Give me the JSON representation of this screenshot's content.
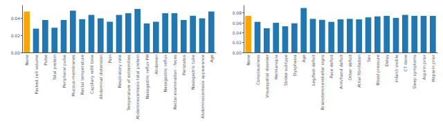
{
  "chart_data": [
    {
      "type": "bar",
      "categories": [
        "None",
        "Packed cell volume",
        "Pulse",
        "Total protein",
        "Peripheral pulse",
        "Mucous membranes",
        "Rectal temperature",
        "Capillary refill time",
        "Abdominal distension",
        "Pain",
        "Respiratory rate",
        "Temperature of extremities",
        "Abdominocentesis total protein",
        "Nasogastric reflux PH",
        "Abdomen",
        "Nasogastric reflux",
        "Rectal examination - feces",
        "Peristalsis",
        "Nasogastric tube",
        "Abdominocentesis appearance",
        "Age"
      ],
      "values": [
        0.048,
        0.028,
        0.038,
        0.029,
        0.038,
        0.049,
        0.039,
        0.044,
        0.04,
        0.036,
        0.044,
        0.046,
        0.051,
        0.034,
        0.036,
        0.046,
        0.046,
        0.038,
        0.043,
        0.04,
        0.048
      ],
      "colors": [
        "#FFA500",
        "#1f77b4",
        "#1f77b4",
        "#1f77b4",
        "#1f77b4",
        "#1f77b4",
        "#1f77b4",
        "#1f77b4",
        "#1f77b4",
        "#1f77b4",
        "#1f77b4",
        "#1f77b4",
        "#1f77b4",
        "#1f77b4",
        "#1f77b4",
        "#1f77b4",
        "#1f77b4",
        "#1f77b4",
        "#1f77b4",
        "#1f77b4",
        "#1f77b4"
      ],
      "ylim": [
        0,
        0.055
      ],
      "yticks": [
        {
          "value": 0,
          "label": "0.00"
        },
        0.02,
        0.04
      ],
      "grid": false
    },
    {
      "type": "bar",
      "categories": [
        "None",
        "Consciousness",
        "Visuospatial disorder",
        "Hemianopia",
        "Stroke subtype",
        "Dysphasia",
        "Age",
        "Leg/foot deficit",
        "Brainstem/cerebellar signs",
        "Face deficit",
        "Arm/hand deficit",
        "Other deficit",
        "Atrial fibrillation",
        "Sex",
        "Blood pressure",
        "Delay",
        "Infarct visible",
        "CT done",
        "Sleep symptoms",
        "Aspirin prior",
        "Heparin prior"
      ],
      "values": [
        0.074,
        0.062,
        0.049,
        0.06,
        0.053,
        0.059,
        0.09,
        0.068,
        0.066,
        0.062,
        0.067,
        0.068,
        0.067,
        0.071,
        0.073,
        0.074,
        0.07,
        0.076,
        0.074,
        0.074,
        0.074
      ],
      "colors": [
        "#FFA500",
        "#1f77b4",
        "#1f77b4",
        "#1f77b4",
        "#1f77b4",
        "#1f77b4",
        "#1f77b4",
        "#1f77b4",
        "#1f77b4",
        "#1f77b4",
        "#1f77b4",
        "#1f77b4",
        "#1f77b4",
        "#1f77b4",
        "#1f77b4",
        "#1f77b4",
        "#1f77b4",
        "#1f77b4",
        "#1f77b4",
        "#1f77b4",
        "#1f77b4"
      ],
      "ylim": [
        0,
        0.095
      ],
      "yticks": [
        {
          "value": 0,
          "label": "0.00"
        },
        0.02,
        0.04,
        0.06,
        0.08
      ],
      "grid": false
    }
  ]
}
